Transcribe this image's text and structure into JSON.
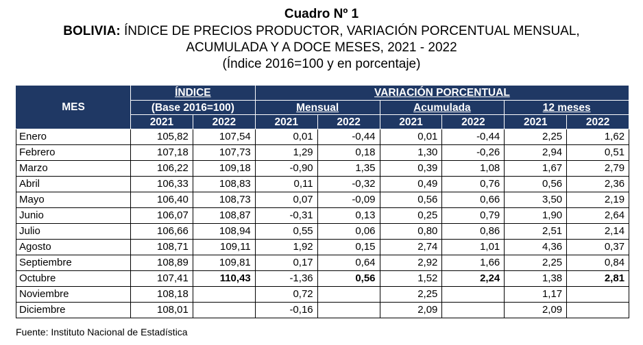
{
  "title": "Cuadro Nº 1",
  "subtitle": {
    "bold_part": "BOLIVIA:",
    "rest_line1": " ÍNDICE DE PRECIOS PRODUCTOR, VARIACIÓN PORCENTUAL MENSUAL,",
    "line2": "ACUMULADA Y A DOCE MESES, 2021 - 2022",
    "line3": "(Índice 2016=100 y en porcentaje)"
  },
  "header": {
    "mes": "MES",
    "indice": "ÍNDICE",
    "indice_base": "(Base 2016=100)",
    "variacion": "VARIACIÓN PORCENTUAL",
    "mensual": "Mensual",
    "acumulada": "Acumulada",
    "doce_meses": "12 meses",
    "years": [
      "2021",
      "2022",
      "2021",
      "2022",
      "2021",
      "2022",
      "2021",
      "2022"
    ]
  },
  "rows": [
    {
      "mes": "Enero",
      "v": [
        "105,82",
        "107,54",
        "0,01",
        "-0,44",
        "0,01",
        "-0,44",
        "2,25",
        "1,62"
      ]
    },
    {
      "mes": "Febrero",
      "v": [
        "107,18",
        "107,73",
        "1,29",
        "0,18",
        "1,30",
        "-0,26",
        "2,94",
        "0,51"
      ]
    },
    {
      "mes": "Marzo",
      "v": [
        "106,22",
        "109,18",
        "-0,90",
        "1,35",
        "0,39",
        "1,08",
        "1,67",
        "2,79"
      ]
    },
    {
      "mes": "Abril",
      "v": [
        "106,33",
        "108,83",
        "0,11",
        "-0,32",
        "0,49",
        "0,76",
        "0,56",
        "2,36"
      ]
    },
    {
      "mes": "Mayo",
      "v": [
        "106,40",
        "108,73",
        "0,07",
        "-0,09",
        "0,56",
        "0,66",
        "3,50",
        "2,19"
      ]
    },
    {
      "mes": "Junio",
      "v": [
        "106,07",
        "108,87",
        "-0,31",
        "0,13",
        "0,25",
        "0,79",
        "1,90",
        "2,64"
      ]
    },
    {
      "mes": "Julio",
      "v": [
        "106,66",
        "108,94",
        "0,55",
        "0,06",
        "0,80",
        "0,86",
        "2,51",
        "2,14"
      ]
    },
    {
      "mes": "Agosto",
      "v": [
        "108,71",
        "109,11",
        "1,92",
        "0,15",
        "2,74",
        "1,01",
        "4,36",
        "0,37"
      ]
    },
    {
      "mes": "Septiembre",
      "v": [
        "108,89",
        "109,81",
        "0,17",
        "0,64",
        "2,92",
        "1,66",
        "2,25",
        "0,84"
      ]
    },
    {
      "mes": "Octubre",
      "v": [
        "107,41",
        "110,43",
        "-1,36",
        "0,56",
        "1,52",
        "2,24",
        "1,38",
        "2,81"
      ],
      "bold_2022": true
    },
    {
      "mes": "Noviembre",
      "v": [
        "108,18",
        "",
        "0,72",
        "",
        "2,25",
        "",
        "1,17",
        ""
      ]
    },
    {
      "mes": "Diciembre",
      "v": [
        "108,01",
        "",
        "-0,16",
        "",
        "2,09",
        "",
        "2,09",
        ""
      ]
    }
  ],
  "source": "Fuente: Instituto Nacional de Estadística",
  "colors": {
    "header_bg": "#1f3864",
    "header_text": "#ffffff"
  }
}
